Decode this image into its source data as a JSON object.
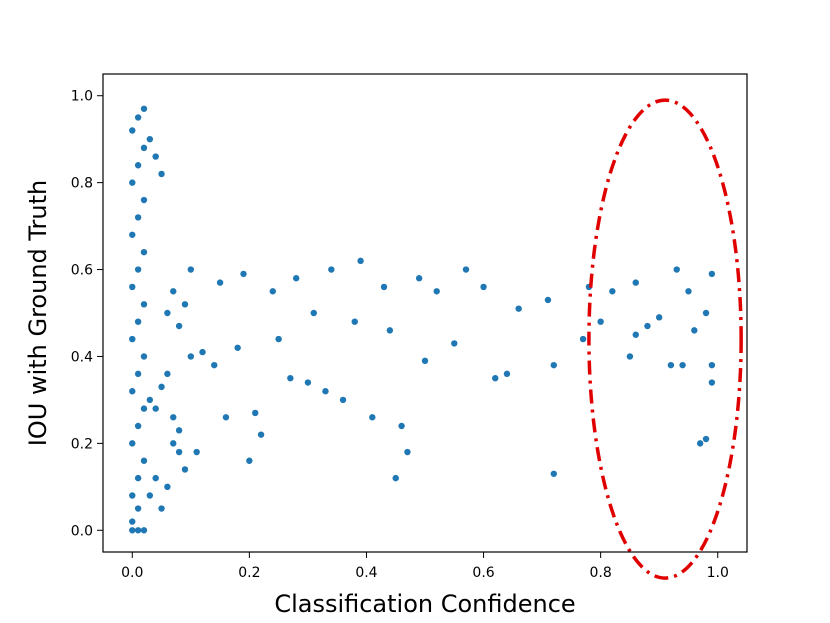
{
  "chart_data": {
    "type": "scatter",
    "title": "",
    "xlabel": "Classification Confidence",
    "ylabel": "IOU with Ground Truth",
    "xlim": [
      -0.05,
      1.05
    ],
    "ylim": [
      -0.05,
      1.05
    ],
    "x_ticks": [
      0.0,
      0.2,
      0.4,
      0.6,
      0.8,
      1.0
    ],
    "x_tick_labels": [
      "0.0",
      "0.2",
      "0.4",
      "0.6",
      "0.8",
      "1.0"
    ],
    "y_ticks": [
      0.0,
      0.2,
      0.4,
      0.6,
      0.8,
      1.0
    ],
    "y_tick_labels": [
      "0.0",
      "0.2",
      "0.4",
      "0.6",
      "0.8",
      "1.0"
    ],
    "grid": false,
    "point_color": "#1f77b4",
    "highlight_color": "#e00000",
    "series": [
      {
        "points": [
          [
            0.0,
            0.0
          ],
          [
            0.01,
            0.0
          ],
          [
            0.02,
            0.0
          ],
          [
            0.0,
            0.02
          ],
          [
            0.01,
            0.05
          ],
          [
            0.0,
            0.08
          ],
          [
            0.01,
            0.12
          ],
          [
            0.02,
            0.16
          ],
          [
            0.0,
            0.2
          ],
          [
            0.01,
            0.24
          ],
          [
            0.02,
            0.28
          ],
          [
            0.0,
            0.32
          ],
          [
            0.01,
            0.36
          ],
          [
            0.02,
            0.4
          ],
          [
            0.0,
            0.44
          ],
          [
            0.01,
            0.48
          ],
          [
            0.02,
            0.52
          ],
          [
            0.0,
            0.56
          ],
          [
            0.01,
            0.6
          ],
          [
            0.02,
            0.64
          ],
          [
            0.0,
            0.68
          ],
          [
            0.01,
            0.72
          ],
          [
            0.02,
            0.76
          ],
          [
            0.0,
            0.8
          ],
          [
            0.01,
            0.84
          ],
          [
            0.02,
            0.88
          ],
          [
            0.0,
            0.92
          ],
          [
            0.01,
            0.95
          ],
          [
            0.02,
            0.97
          ],
          [
            0.03,
            0.9
          ],
          [
            0.04,
            0.86
          ],
          [
            0.05,
            0.82
          ],
          [
            0.03,
            0.3
          ],
          [
            0.04,
            0.28
          ],
          [
            0.03,
            0.08
          ],
          [
            0.04,
            0.12
          ],
          [
            0.05,
            0.05
          ],
          [
            0.06,
            0.1
          ],
          [
            0.07,
            0.2
          ],
          [
            0.08,
            0.18
          ],
          [
            0.08,
            0.23
          ],
          [
            0.07,
            0.26
          ],
          [
            0.05,
            0.33
          ],
          [
            0.06,
            0.36
          ],
          [
            0.09,
            0.14
          ],
          [
            0.11,
            0.18
          ],
          [
            0.16,
            0.26
          ],
          [
            0.2,
            0.16
          ],
          [
            0.21,
            0.27
          ],
          [
            0.22,
            0.22
          ],
          [
            0.27,
            0.35
          ],
          [
            0.3,
            0.34
          ],
          [
            0.33,
            0.32
          ],
          [
            0.36,
            0.3
          ],
          [
            0.41,
            0.26
          ],
          [
            0.45,
            0.12
          ],
          [
            0.47,
            0.18
          ],
          [
            0.46,
            0.24
          ],
          [
            0.72,
            0.13
          ],
          [
            0.97,
            0.2
          ],
          [
            0.98,
            0.21
          ],
          [
            0.99,
            0.38
          ],
          [
            0.92,
            0.38
          ],
          [
            0.94,
            0.38
          ],
          [
            0.99,
            0.34
          ],
          [
            0.85,
            0.4
          ],
          [
            0.86,
            0.45
          ],
          [
            0.88,
            0.47
          ],
          [
            0.9,
            0.49
          ],
          [
            0.96,
            0.46
          ],
          [
            0.98,
            0.5
          ],
          [
            0.8,
            0.48
          ],
          [
            0.77,
            0.44
          ],
          [
            0.72,
            0.38
          ],
          [
            0.62,
            0.35
          ],
          [
            0.64,
            0.36
          ],
          [
            0.55,
            0.43
          ],
          [
            0.5,
            0.39
          ],
          [
            0.44,
            0.46
          ],
          [
            0.38,
            0.48
          ],
          [
            0.31,
            0.5
          ],
          [
            0.25,
            0.44
          ],
          [
            0.18,
            0.42
          ],
          [
            0.12,
            0.41
          ],
          [
            0.1,
            0.4
          ],
          [
            0.14,
            0.38
          ],
          [
            0.95,
            0.55
          ],
          [
            0.99,
            0.59
          ],
          [
            0.93,
            0.6
          ],
          [
            0.86,
            0.57
          ],
          [
            0.82,
            0.55
          ],
          [
            0.78,
            0.56
          ],
          [
            0.71,
            0.53
          ],
          [
            0.66,
            0.51
          ],
          [
            0.6,
            0.56
          ],
          [
            0.57,
            0.6
          ],
          [
            0.52,
            0.55
          ],
          [
            0.49,
            0.58
          ],
          [
            0.43,
            0.56
          ],
          [
            0.39,
            0.62
          ],
          [
            0.34,
            0.6
          ],
          [
            0.28,
            0.58
          ],
          [
            0.24,
            0.55
          ],
          [
            0.19,
            0.59
          ],
          [
            0.15,
            0.57
          ],
          [
            0.1,
            0.6
          ],
          [
            0.07,
            0.55
          ],
          [
            0.06,
            0.5
          ],
          [
            0.08,
            0.47
          ],
          [
            0.09,
            0.52
          ]
        ]
      }
    ],
    "annotations": [
      {
        "type": "ellipse",
        "style": "dash-dot",
        "cx": 0.91,
        "cy": 0.44,
        "rx": 0.13,
        "ry": 0.55
      }
    ]
  }
}
